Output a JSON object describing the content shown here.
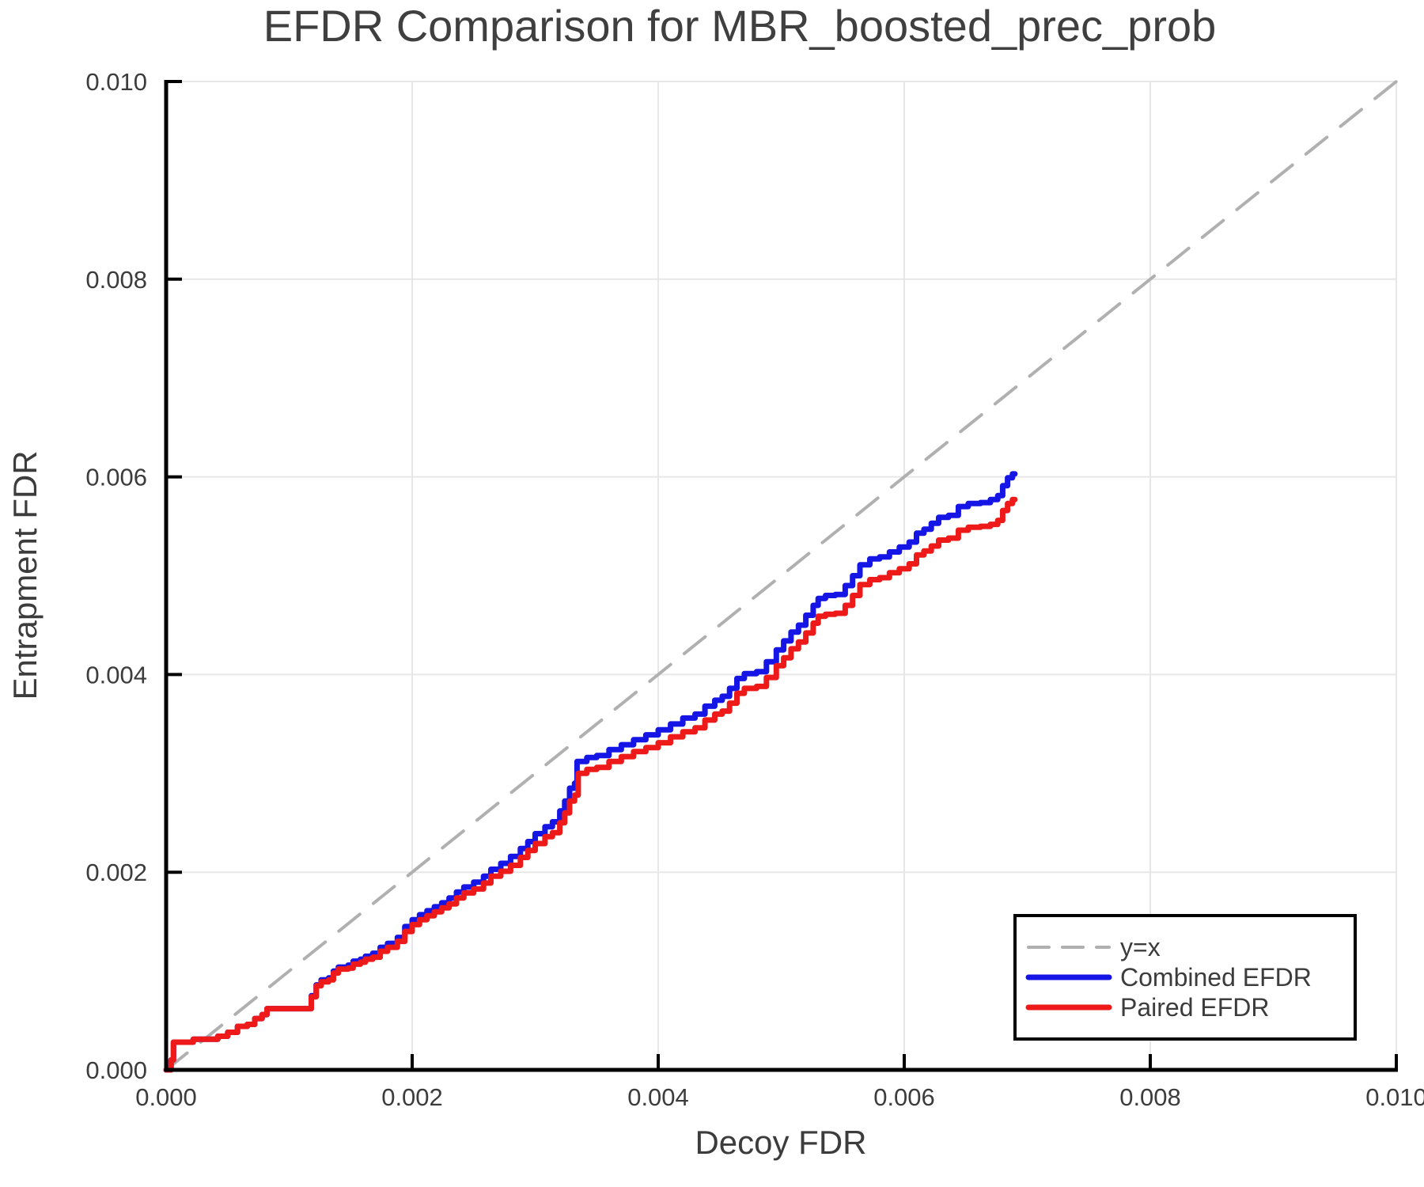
{
  "figure": {
    "title": "EFDR Comparison for MBR_boosted_prec_prob",
    "xlabel": "Decoy FDR",
    "ylabel": "Entrapment FDR"
  },
  "colors": {
    "background": "#ffffff",
    "grid": "#e7e7e7",
    "spine": "#000000",
    "tick": "#000000",
    "text": "#3c3c3c",
    "title_text": "#3f3f3f",
    "identity_line": "#b0b0b0",
    "combined_line": "#1515e6",
    "paired_line": "#ee1a1a",
    "legend_border": "#000000",
    "legend_bg": "#ffffff"
  },
  "chart_data": {
    "type": "line",
    "title": "EFDR Comparison for MBR_boosted_prec_prob",
    "xlabel": "Decoy FDR",
    "ylabel": "Entrapment FDR",
    "xlim": [
      0.0,
      0.01
    ],
    "ylim": [
      0.0,
      0.01
    ],
    "grid": true,
    "legend_position": "lower right",
    "x_ticks": [
      0.0,
      0.002,
      0.004,
      0.006,
      0.008,
      0.01
    ],
    "x_tick_labels": [
      "0.000",
      "0.002",
      "0.004",
      "0.006",
      "0.008",
      "0.010"
    ],
    "y_ticks": [
      0.0,
      0.002,
      0.004,
      0.006,
      0.008,
      0.01
    ],
    "y_tick_labels": [
      "0.000",
      "0.002",
      "0.004",
      "0.006",
      "0.008",
      "0.010"
    ],
    "series": [
      {
        "name": "y=x",
        "style": "dashed",
        "step": false,
        "color": "#b0b0b0",
        "width": 4,
        "points": [
          [
            0.0,
            0.0
          ],
          [
            0.01,
            0.01
          ]
        ]
      },
      {
        "name": "Combined EFDR",
        "style": "solid",
        "step": true,
        "color": "#1515e6",
        "width": 7,
        "points": [
          [
            0.0,
            0.0
          ],
          [
            4e-05,
            0.0001
          ],
          [
            6e-05,
            0.00028
          ],
          [
            0.0002,
            0.00028
          ],
          [
            0.00022,
            0.00031
          ],
          [
            0.00038,
            0.00031
          ],
          [
            0.00042,
            0.00034
          ],
          [
            0.0005,
            0.00038
          ],
          [
            0.00058,
            0.00044
          ],
          [
            0.00066,
            0.00046
          ],
          [
            0.00072,
            0.00052
          ],
          [
            0.00078,
            0.00056
          ],
          [
            0.00082,
            0.00062
          ],
          [
            0.00112,
            0.00062
          ],
          [
            0.00118,
            0.00075
          ],
          [
            0.00122,
            0.00086
          ],
          [
            0.00126,
            0.00091
          ],
          [
            0.00132,
            0.00093
          ],
          [
            0.00136,
            0.001
          ],
          [
            0.0014,
            0.00104
          ],
          [
            0.00148,
            0.00106
          ],
          [
            0.00152,
            0.0011
          ],
          [
            0.00158,
            0.00112
          ],
          [
            0.00162,
            0.00115
          ],
          [
            0.00168,
            0.00118
          ],
          [
            0.00174,
            0.00124
          ],
          [
            0.0018,
            0.00128
          ],
          [
            0.00188,
            0.00134
          ],
          [
            0.00194,
            0.00145
          ],
          [
            0.002,
            0.00152
          ],
          [
            0.00206,
            0.00157
          ],
          [
            0.00212,
            0.00161
          ],
          [
            0.00218,
            0.00165
          ],
          [
            0.00224,
            0.00169
          ],
          [
            0.0023,
            0.00174
          ],
          [
            0.00236,
            0.0018
          ],
          [
            0.00242,
            0.00185
          ],
          [
            0.0025,
            0.0019
          ],
          [
            0.00258,
            0.00196
          ],
          [
            0.00264,
            0.00203
          ],
          [
            0.00272,
            0.00209
          ],
          [
            0.0028,
            0.00216
          ],
          [
            0.00288,
            0.00224
          ],
          [
            0.00294,
            0.00231
          ],
          [
            0.003,
            0.00239
          ],
          [
            0.00308,
            0.00246
          ],
          [
            0.00314,
            0.00251
          ],
          [
            0.0032,
            0.00262
          ],
          [
            0.00324,
            0.00272
          ],
          [
            0.00328,
            0.00285
          ],
          [
            0.00332,
            0.0029
          ],
          [
            0.00334,
            0.00312
          ],
          [
            0.00342,
            0.00316
          ],
          [
            0.0035,
            0.00318
          ],
          [
            0.0036,
            0.00324
          ],
          [
            0.0037,
            0.00329
          ],
          [
            0.0038,
            0.00334
          ],
          [
            0.0039,
            0.00339
          ],
          [
            0.004,
            0.00344
          ],
          [
            0.0041,
            0.0035
          ],
          [
            0.0042,
            0.00356
          ],
          [
            0.0043,
            0.0036
          ],
          [
            0.00438,
            0.00368
          ],
          [
            0.00446,
            0.00374
          ],
          [
            0.00452,
            0.00378
          ],
          [
            0.00458,
            0.00386
          ],
          [
            0.00464,
            0.00396
          ],
          [
            0.0047,
            0.00401
          ],
          [
            0.0048,
            0.00403
          ],
          [
            0.00488,
            0.00413
          ],
          [
            0.00496,
            0.00425
          ],
          [
            0.00502,
            0.00434
          ],
          [
            0.00508,
            0.00443
          ],
          [
            0.00514,
            0.0045
          ],
          [
            0.0052,
            0.0046
          ],
          [
            0.00526,
            0.0047
          ],
          [
            0.0053,
            0.00477
          ],
          [
            0.00536,
            0.0048
          ],
          [
            0.00544,
            0.00481
          ],
          [
            0.00552,
            0.0049
          ],
          [
            0.00558,
            0.005
          ],
          [
            0.00564,
            0.00511
          ],
          [
            0.00572,
            0.00517
          ],
          [
            0.0058,
            0.00519
          ],
          [
            0.00588,
            0.00524
          ],
          [
            0.00596,
            0.00529
          ],
          [
            0.00604,
            0.00534
          ],
          [
            0.0061,
            0.00543
          ],
          [
            0.00616,
            0.00547
          ],
          [
            0.00622,
            0.00553
          ],
          [
            0.00628,
            0.00559
          ],
          [
            0.00636,
            0.00561
          ],
          [
            0.00644,
            0.0057
          ],
          [
            0.00652,
            0.00573
          ],
          [
            0.00662,
            0.00574
          ],
          [
            0.0067,
            0.00577
          ],
          [
            0.00676,
            0.00581
          ],
          [
            0.0068,
            0.00591
          ],
          [
            0.00684,
            0.00599
          ],
          [
            0.00688,
            0.00603
          ],
          [
            0.0069,
            0.00603
          ]
        ]
      },
      {
        "name": "Paired EFDR",
        "style": "solid",
        "step": true,
        "color": "#ee1a1a",
        "width": 7,
        "points": [
          [
            0.0,
            0.0
          ],
          [
            4e-05,
            0.0001
          ],
          [
            6e-05,
            0.00028
          ],
          [
            0.0002,
            0.00028
          ],
          [
            0.00022,
            0.00031
          ],
          [
            0.00038,
            0.00031
          ],
          [
            0.00042,
            0.00034
          ],
          [
            0.0005,
            0.00038
          ],
          [
            0.00058,
            0.00044
          ],
          [
            0.00066,
            0.00046
          ],
          [
            0.00072,
            0.00052
          ],
          [
            0.00078,
            0.00056
          ],
          [
            0.00082,
            0.00062
          ],
          [
            0.00112,
            0.00062
          ],
          [
            0.00118,
            0.00074
          ],
          [
            0.00122,
            0.00085
          ],
          [
            0.00126,
            0.00089
          ],
          [
            0.00132,
            0.00091
          ],
          [
            0.00136,
            0.00098
          ],
          [
            0.0014,
            0.00102
          ],
          [
            0.00148,
            0.00103
          ],
          [
            0.00152,
            0.00107
          ],
          [
            0.00158,
            0.00109
          ],
          [
            0.00162,
            0.00112
          ],
          [
            0.00168,
            0.00114
          ],
          [
            0.00174,
            0.0012
          ],
          [
            0.0018,
            0.00124
          ],
          [
            0.00188,
            0.0013
          ],
          [
            0.00194,
            0.0014
          ],
          [
            0.002,
            0.00147
          ],
          [
            0.00206,
            0.00152
          ],
          [
            0.00212,
            0.00156
          ],
          [
            0.00218,
            0.0016
          ],
          [
            0.00224,
            0.00164
          ],
          [
            0.0023,
            0.00168
          ],
          [
            0.00236,
            0.00174
          ],
          [
            0.00242,
            0.00179
          ],
          [
            0.0025,
            0.00183
          ],
          [
            0.00258,
            0.00189
          ],
          [
            0.00264,
            0.00196
          ],
          [
            0.00272,
            0.00201
          ],
          [
            0.0028,
            0.00207
          ],
          [
            0.00288,
            0.00215
          ],
          [
            0.00294,
            0.00222
          ],
          [
            0.003,
            0.00229
          ],
          [
            0.00308,
            0.00236
          ],
          [
            0.00314,
            0.0024
          ],
          [
            0.0032,
            0.0025
          ],
          [
            0.00324,
            0.0026
          ],
          [
            0.00328,
            0.00272
          ],
          [
            0.00332,
            0.00278
          ],
          [
            0.00335,
            0.003
          ],
          [
            0.00342,
            0.00304
          ],
          [
            0.0035,
            0.00306
          ],
          [
            0.0036,
            0.00312
          ],
          [
            0.0037,
            0.00317
          ],
          [
            0.0038,
            0.00322
          ],
          [
            0.0039,
            0.00326
          ],
          [
            0.004,
            0.00331
          ],
          [
            0.0041,
            0.00337
          ],
          [
            0.0042,
            0.00342
          ],
          [
            0.0043,
            0.00346
          ],
          [
            0.00438,
            0.00354
          ],
          [
            0.00446,
            0.0036
          ],
          [
            0.00452,
            0.00363
          ],
          [
            0.00458,
            0.00371
          ],
          [
            0.00464,
            0.00381
          ],
          [
            0.0047,
            0.00386
          ],
          [
            0.0048,
            0.00388
          ],
          [
            0.00488,
            0.00397
          ],
          [
            0.00496,
            0.00409
          ],
          [
            0.00502,
            0.00417
          ],
          [
            0.00508,
            0.00426
          ],
          [
            0.00514,
            0.00433
          ],
          [
            0.0052,
            0.00442
          ],
          [
            0.00526,
            0.00452
          ],
          [
            0.0053,
            0.00459
          ],
          [
            0.00536,
            0.00461
          ],
          [
            0.00544,
            0.00462
          ],
          [
            0.00552,
            0.0047
          ],
          [
            0.00558,
            0.0048
          ],
          [
            0.00564,
            0.00491
          ],
          [
            0.00572,
            0.00496
          ],
          [
            0.0058,
            0.00498
          ],
          [
            0.00588,
            0.00503
          ],
          [
            0.00596,
            0.00507
          ],
          [
            0.00604,
            0.00512
          ],
          [
            0.0061,
            0.00521
          ],
          [
            0.00616,
            0.00525
          ],
          [
            0.00622,
            0.0053
          ],
          [
            0.00628,
            0.00536
          ],
          [
            0.00636,
            0.00538
          ],
          [
            0.00644,
            0.00546
          ],
          [
            0.00652,
            0.00549
          ],
          [
            0.00662,
            0.0055
          ],
          [
            0.0067,
            0.00552
          ],
          [
            0.00676,
            0.00556
          ],
          [
            0.0068,
            0.00566
          ],
          [
            0.00684,
            0.00573
          ],
          [
            0.00688,
            0.00577
          ],
          [
            0.0069,
            0.00577
          ]
        ]
      }
    ]
  }
}
